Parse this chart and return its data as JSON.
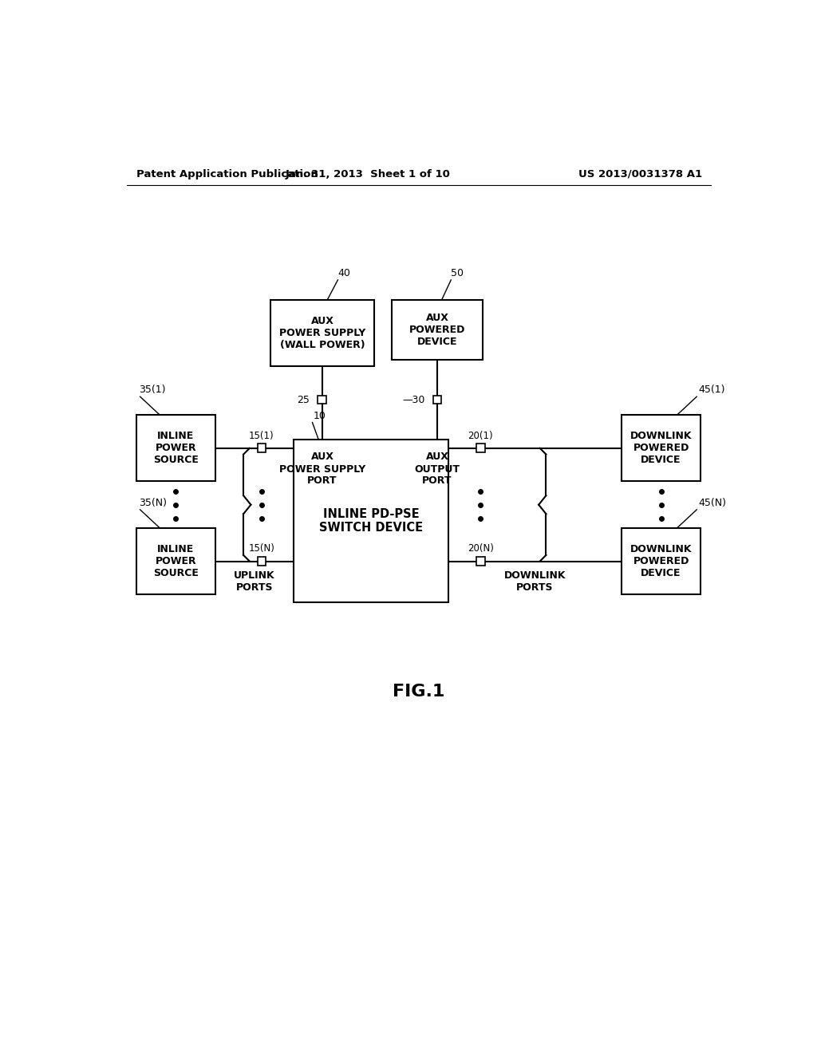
{
  "bg_color": "#ffffff",
  "header_left": "Patent Application Publication",
  "header_mid": "Jan. 31, 2013  Sheet 1 of 10",
  "header_right": "US 2013/0031378 A1",
  "fig_label": "FIG.1",
  "center_box_label": "INLINE PD-PSE\nSWITCH DEVICE",
  "aux_ps_label": "AUX\nPOWER SUPPLY\n(WALL POWER)",
  "aux_pd_label": "AUX\nPOWERED\nDEVICE",
  "ips_label": "INLINE\nPOWER\nSOURCE",
  "dpd_label": "DOWNLINK\nPOWERED\nDEVICE",
  "uplink_ports_label": "UPLINK\nPORTS",
  "downlink_ports_label": "DOWNLINK\nPORTS",
  "aux_ps_port_label": "AUX\nPOWER SUPPLY\nPORT",
  "aux_out_port_label": "AUX\nOUTPUT\nPORT"
}
